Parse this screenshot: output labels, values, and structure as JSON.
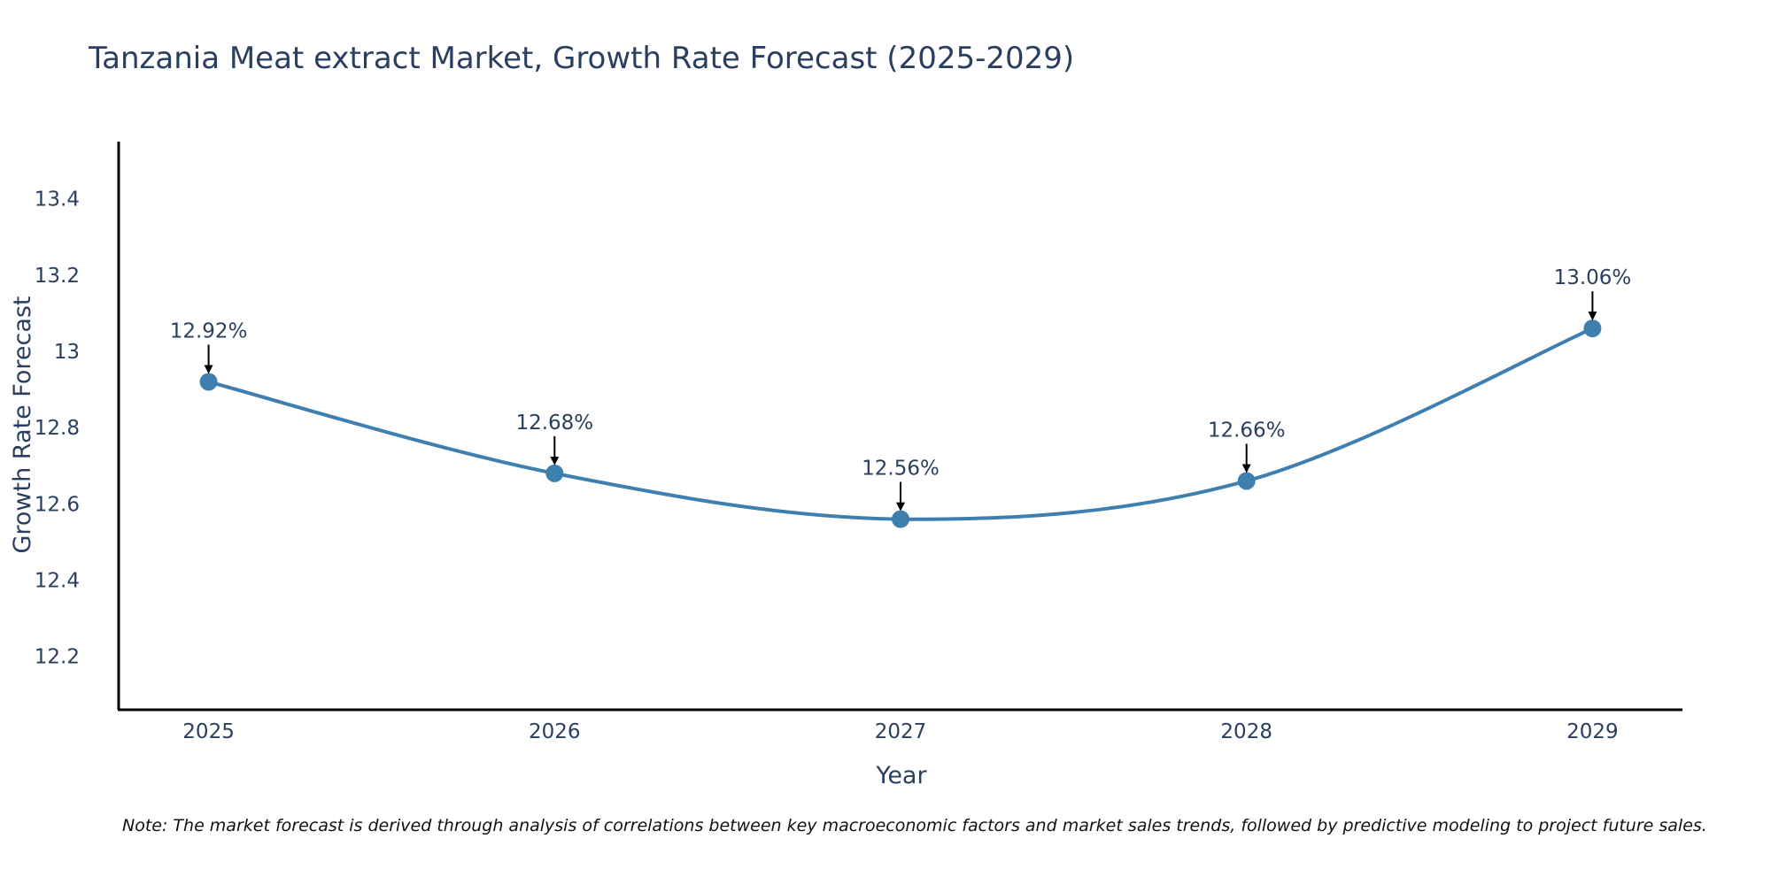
{
  "chart_data": {
    "type": "line",
    "title": "Tanzania Meat extract Market, Growth Rate Forecast (2025-2029)",
    "xlabel": "Year",
    "ylabel": "Growth Rate Forecast",
    "x": [
      2025,
      2026,
      2027,
      2028,
      2029
    ],
    "x_tick_labels": [
      "2025",
      "2026",
      "2027",
      "2028",
      "2029"
    ],
    "values": [
      12.92,
      12.68,
      12.56,
      12.66,
      13.06
    ],
    "data_labels": [
      "12.92%",
      "12.68%",
      "12.56%",
      "12.66%",
      "13.06%"
    ],
    "ylim": [
      12.06,
      13.55
    ],
    "xlim": [
      2024.74,
      2029.26
    ],
    "y_ticks": [
      12.2,
      12.4,
      12.6,
      12.8,
      13,
      13.2,
      13.4
    ],
    "y_tick_labels": [
      "12.2",
      "12.4",
      "12.6",
      "12.8",
      "13",
      "13.2",
      "13.4"
    ],
    "grid": false,
    "line_color": "#3f7faf",
    "marker_color": "#3f7faf",
    "note": "Note: The market forecast is derived through analysis of correlations between key macroeconomic factors and market sales trends, followed by predictive modeling to project future sales."
  }
}
